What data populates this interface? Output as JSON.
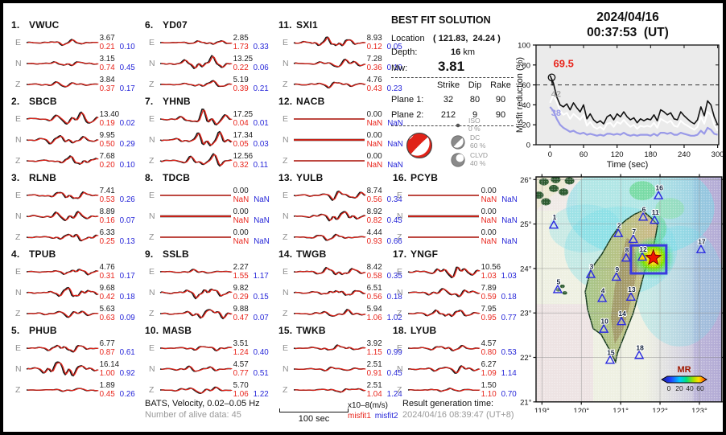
{
  "figure": {
    "date": "2024/04/16",
    "time": "00:37:53  (UT)"
  },
  "best_fit": {
    "title": "BEST FIT SOLUTION",
    "location_label": "Location",
    "location_value": "( 121.83,  24.24 )",
    "depth_label": "Depth:",
    "depth_value": "16",
    "depth_unit": "km",
    "mw_label": "Mw:",
    "mw_value": "3.81",
    "table": {
      "headers": [
        "Strike",
        "Dip",
        "Rake"
      ],
      "rows": [
        {
          "label": "Plane 1:",
          "strike": "32",
          "dip": "80",
          "rake": "90"
        },
        {
          "label": "Plane 2:",
          "strike": "212",
          "dip": "9",
          "rake": "90"
        }
      ]
    },
    "components": [
      {
        "name": "ISO",
        "pct": "0 %"
      },
      {
        "name": "DC",
        "pct": "60 %"
      },
      {
        "name": "CLVD",
        "pct": "40 %"
      }
    ]
  },
  "stations": [
    {
      "num": "1.",
      "code": "VWUC",
      "rows": [
        {
          "comp": "E",
          "amp": "3.67",
          "m1": "0.21",
          "m2": "0.10"
        },
        {
          "comp": "N",
          "amp": "3.15",
          "m1": "0.74",
          "m2": "0.45"
        },
        {
          "comp": "Z",
          "amp": "3.84",
          "m1": "0.37",
          "m2": "0.17"
        }
      ]
    },
    {
      "num": "2.",
      "code": "SBCB",
      "rows": [
        {
          "comp": "E",
          "amp": "13.40",
          "m1": "0.19",
          "m2": "0.02"
        },
        {
          "comp": "N",
          "amp": "9.95",
          "m1": "0.50",
          "m2": "0.29"
        },
        {
          "comp": "Z",
          "amp": "7.68",
          "m1": "0.20",
          "m2": "0.10"
        }
      ]
    },
    {
      "num": "3.",
      "code": "RLNB",
      "rows": [
        {
          "comp": "E",
          "amp": "7.41",
          "m1": "0.53",
          "m2": "0.26"
        },
        {
          "comp": "N",
          "amp": "8.89",
          "m1": "0.16",
          "m2": "0.07"
        },
        {
          "comp": "Z",
          "amp": "6.33",
          "m1": "0.25",
          "m2": "0.13"
        }
      ]
    },
    {
      "num": "4.",
      "code": "TPUB",
      "rows": [
        {
          "comp": "E",
          "amp": "4.76",
          "m1": "0.31",
          "m2": "0.17"
        },
        {
          "comp": "N",
          "amp": "9.68",
          "m1": "0.42",
          "m2": "0.18"
        },
        {
          "comp": "Z",
          "amp": "5.63",
          "m1": "0.63",
          "m2": "0.09"
        }
      ]
    },
    {
      "num": "5.",
      "code": "PHUB",
      "rows": [
        {
          "comp": "E",
          "amp": "6.77",
          "m1": "0.87",
          "m2": "0.61"
        },
        {
          "comp": "N",
          "amp": "16.14",
          "m1": "1.00",
          "m2": "0.92"
        },
        {
          "comp": "Z",
          "amp": "1.89",
          "m1": "0.45",
          "m2": "0.26"
        }
      ]
    },
    {
      "num": "6.",
      "code": "YD07",
      "rows": [
        {
          "comp": "E",
          "amp": "2.85",
          "m1": "1.73",
          "m2": "0.33"
        },
        {
          "comp": "N",
          "amp": "13.25",
          "m1": "0.22",
          "m2": "0.06"
        },
        {
          "comp": "Z",
          "amp": "5.19",
          "m1": "0.39",
          "m2": "0.21"
        }
      ]
    },
    {
      "num": "7.",
      "code": "YHNB",
      "rows": [
        {
          "comp": "E",
          "amp": "17.25",
          "m1": "0.04",
          "m2": "0.01"
        },
        {
          "comp": "N",
          "amp": "17.34",
          "m1": "0.05",
          "m2": "0.03"
        },
        {
          "comp": "Z",
          "amp": "12.56",
          "m1": "0.32",
          "m2": "0.11"
        }
      ]
    },
    {
      "num": "8.",
      "code": "TDCB",
      "rows": [
        {
          "comp": "E",
          "amp": "0.00",
          "m1": "NaN",
          "m2": "NaN"
        },
        {
          "comp": "N",
          "amp": "0.00",
          "m1": "NaN",
          "m2": "NaN"
        },
        {
          "comp": "Z",
          "amp": "0.00",
          "m1": "NaN",
          "m2": "NaN"
        }
      ]
    },
    {
      "num": "9.",
      "code": "SSLB",
      "rows": [
        {
          "comp": "E",
          "amp": "2.27",
          "m1": "1.55",
          "m2": "1.17"
        },
        {
          "comp": "N",
          "amp": "9.82",
          "m1": "0.29",
          "m2": "0.15"
        },
        {
          "comp": "Z",
          "amp": "9.88",
          "m1": "0.47",
          "m2": "0.07"
        }
      ]
    },
    {
      "num": "10.",
      "code": "MASB",
      "rows": [
        {
          "comp": "E",
          "amp": "3.51",
          "m1": "1.24",
          "m2": "0.40"
        },
        {
          "comp": "N",
          "amp": "4.57",
          "m1": "0.77",
          "m2": "0.51"
        },
        {
          "comp": "Z",
          "amp": "5.70",
          "m1": "1.06",
          "m2": "1.22"
        }
      ]
    },
    {
      "num": "11.",
      "code": "SXI1",
      "rows": [
        {
          "comp": "E",
          "amp": "8.93",
          "m1": "0.12",
          "m2": "0.05"
        },
        {
          "comp": "N",
          "amp": "7.28",
          "m1": "0.36",
          "m2": "0.10"
        },
        {
          "comp": "Z",
          "amp": "4.76",
          "m1": "0.43",
          "m2": "0.23"
        }
      ]
    },
    {
      "num": "12.",
      "code": "NACB",
      "rows": [
        {
          "comp": "E",
          "amp": "0.00",
          "m1": "NaN",
          "m2": "NaN"
        },
        {
          "comp": "N",
          "amp": "0.00",
          "m1": "NaN",
          "m2": "NaN"
        },
        {
          "comp": "Z",
          "amp": "0.00",
          "m1": "NaN",
          "m2": "NaN"
        }
      ]
    },
    {
      "num": "13.",
      "code": "YULB",
      "rows": [
        {
          "comp": "E",
          "amp": "8.74",
          "m1": "0.56",
          "m2": "0.34"
        },
        {
          "comp": "N",
          "amp": "8.92",
          "m1": "0.82",
          "m2": "0.45"
        },
        {
          "comp": "Z",
          "amp": "4.44",
          "m1": "0.93",
          "m2": "0.66"
        }
      ]
    },
    {
      "num": "14.",
      "code": "TWGB",
      "rows": [
        {
          "comp": "E",
          "amp": "8.42",
          "m1": "0.58",
          "m2": "0.35"
        },
        {
          "comp": "N",
          "amp": "6.51",
          "m1": "0.56",
          "m2": "0.18"
        },
        {
          "comp": "Z",
          "amp": "5.94",
          "m1": "1.06",
          "m2": "1.02"
        }
      ]
    },
    {
      "num": "15.",
      "code": "TWKB",
      "rows": [
        {
          "comp": "E",
          "amp": "3.92",
          "m1": "1.15",
          "m2": "0.99"
        },
        {
          "comp": "N",
          "amp": "2.51",
          "m1": "0.91",
          "m2": "0.45"
        },
        {
          "comp": "Z",
          "amp": "2.51",
          "m1": "1.04",
          "m2": "1.24"
        }
      ]
    },
    {
      "num": "16.",
      "code": "PCYB",
      "rows": [
        {
          "comp": "E",
          "amp": "0.00",
          "m1": "NaN",
          "m2": "NaN"
        },
        {
          "comp": "N",
          "amp": "0.00",
          "m1": "NaN",
          "m2": "NaN"
        },
        {
          "comp": "Z",
          "amp": "0.00",
          "m1": "NaN",
          "m2": "NaN"
        }
      ]
    },
    {
      "num": "17.",
      "code": "YNGF",
      "rows": [
        {
          "comp": "E",
          "amp": "10.56",
          "m1": "1.03",
          "m2": "1.03"
        },
        {
          "comp": "N",
          "amp": "7.89",
          "m1": "0.59",
          "m2": "0.18"
        },
        {
          "comp": "Z",
          "amp": "7.95",
          "m1": "0.95",
          "m2": "0.77"
        }
      ]
    },
    {
      "num": "18.",
      "code": "LYUB",
      "rows": [
        {
          "comp": "E",
          "amp": "4.57",
          "m1": "0.80",
          "m2": "0.53"
        },
        {
          "comp": "N",
          "amp": "6.27",
          "m1": "1.09",
          "m2": "1.14"
        },
        {
          "comp": "Z",
          "amp": "1.50",
          "m1": "1.10",
          "m2": "0.70"
        }
      ]
    }
  ],
  "footer": {
    "line1": "BATS, Velocity, 0.02–0.05 Hz",
    "line2": "Number of alive data: 45",
    "scalebar_label": "100 sec",
    "units": "x10–8(m/s)",
    "misfit1_label": "misfit1",
    "misfit2_label": "misfit2",
    "result_label": "Result generation time:",
    "result_value": "2024/04/16 08:39:47 (UT+8)"
  },
  "chart_data": [
    {
      "type": "line",
      "title": "",
      "xlabel": "Time (sec)",
      "ylabel": "Misfit reduction (%)",
      "xlim": [
        -25,
        302
      ],
      "ylim": [
        0,
        100
      ],
      "xticks": [
        0,
        60,
        120,
        180,
        240,
        300
      ],
      "yticks": [
        0,
        20,
        40,
        60,
        80,
        100
      ],
      "grid": false,
      "plot_bg": "#ebebeb",
      "dashed_hline": 60,
      "x_start": 0,
      "x_step": 6,
      "series": [
        {
          "name": "misfit reduction low",
          "color": "#9a9ae8",
          "width": 2.2,
          "values": [
            38,
            34,
            26,
            20,
            17,
            15,
            13,
            14,
            12,
            11,
            12,
            10,
            11,
            10,
            9,
            10,
            9,
            11,
            11,
            10,
            11,
            10,
            12,
            10,
            9,
            10,
            9,
            10,
            10,
            10,
            9,
            11,
            9,
            12,
            12,
            11,
            12,
            10,
            10,
            12,
            11,
            10,
            9,
            9,
            10,
            14,
            11,
            17,
            15,
            11,
            10
          ]
        },
        {
          "name": "misfit reduction mid",
          "color": "#ffffff",
          "width": 2.0,
          "values": [
            42,
            50,
            43,
            34,
            30,
            32,
            26,
            31,
            28,
            25,
            30,
            19,
            23,
            18,
            16,
            18,
            15,
            21,
            22,
            18,
            23,
            21,
            25,
            21,
            18,
            20,
            16,
            19,
            18,
            19,
            18,
            22,
            17,
            26,
            24,
            22,
            24,
            19,
            18,
            24,
            21,
            19,
            17,
            15,
            18,
            28,
            21,
            33,
            30,
            20,
            14
          ]
        },
        {
          "name": "misfit reduction best",
          "color": "#111111",
          "width": 1.6,
          "values": [
            69.5,
            62,
            48,
            40,
            38,
            41,
            35,
            42,
            37,
            33,
            40,
            26,
            31,
            25,
            22,
            24,
            21,
            28,
            30,
            25,
            31,
            28,
            33,
            28,
            25,
            27,
            22,
            26,
            24,
            26,
            25,
            30,
            24,
            35,
            33,
            30,
            32,
            26,
            25,
            33,
            29,
            26,
            23,
            21,
            25,
            38,
            29,
            44,
            40,
            28,
            20
          ]
        }
      ],
      "annotations": [
        {
          "text": "69.5",
          "color": "#e8251c",
          "x": 6,
          "y": 78,
          "size": 13
        },
        {
          "text": "42",
          "color": "#aaaaaa",
          "x": 2,
          "y": 48,
          "size": 11
        },
        {
          "text": "38",
          "color": "#9a9ae8",
          "x": 2,
          "y": 29,
          "size": 11
        }
      ],
      "marker": {
        "x": 3,
        "y": 67.5
      }
    },
    {
      "type": "map",
      "region": "Taiwan",
      "lon_ticks": [
        119,
        120,
        121,
        122,
        123
      ],
      "lat_ticks": [
        26,
        25,
        24,
        23,
        22,
        21
      ],
      "lon_range": [
        118.85,
        123.57
      ],
      "lat_range": [
        21.0,
        26.06
      ],
      "epicenter": {
        "lon": 121.83,
        "lat": 24.24,
        "marker": "star",
        "color": "#f01400"
      },
      "highlight_box": {
        "lon": [
          121.26,
          122.16
        ],
        "lat": [
          23.89,
          24.52
        ],
        "color": "#3a3ae0"
      },
      "stations": [
        {
          "id": "1",
          "lon": 119.3,
          "lat": 24.98
        },
        {
          "id": "2",
          "lon": 120.94,
          "lat": 24.79
        },
        {
          "id": "3",
          "lon": 120.24,
          "lat": 23.87
        },
        {
          "id": "4",
          "lon": 120.53,
          "lat": 23.33
        },
        {
          "id": "5",
          "lon": 119.4,
          "lat": 23.53
        },
        {
          "id": "6",
          "lon": 121.57,
          "lat": 25.16
        },
        {
          "id": "7",
          "lon": 121.32,
          "lat": 24.66
        },
        {
          "id": "8",
          "lon": 121.14,
          "lat": 24.24
        },
        {
          "id": "9",
          "lon": 120.89,
          "lat": 23.81
        },
        {
          "id": "10",
          "lon": 120.57,
          "lat": 22.64
        },
        {
          "id": "11",
          "lon": 121.86,
          "lat": 25.09
        },
        {
          "id": "12",
          "lon": 121.55,
          "lat": 24.26,
          "color": "#ffd700"
        },
        {
          "id": "13",
          "lon": 121.26,
          "lat": 23.36
        },
        {
          "id": "14",
          "lon": 121.02,
          "lat": 22.81
        },
        {
          "id": "15",
          "lon": 120.73,
          "lat": 21.94
        },
        {
          "id": "16",
          "lon": 121.96,
          "lat": 25.64
        },
        {
          "id": "17",
          "lon": 123.04,
          "lat": 24.43
        },
        {
          "id": "18",
          "lon": 121.47,
          "lat": 22.05
        }
      ],
      "colorbar": {
        "label": "MR",
        "ticks": [
          "0",
          "20",
          "40",
          "60"
        ]
      }
    }
  ]
}
